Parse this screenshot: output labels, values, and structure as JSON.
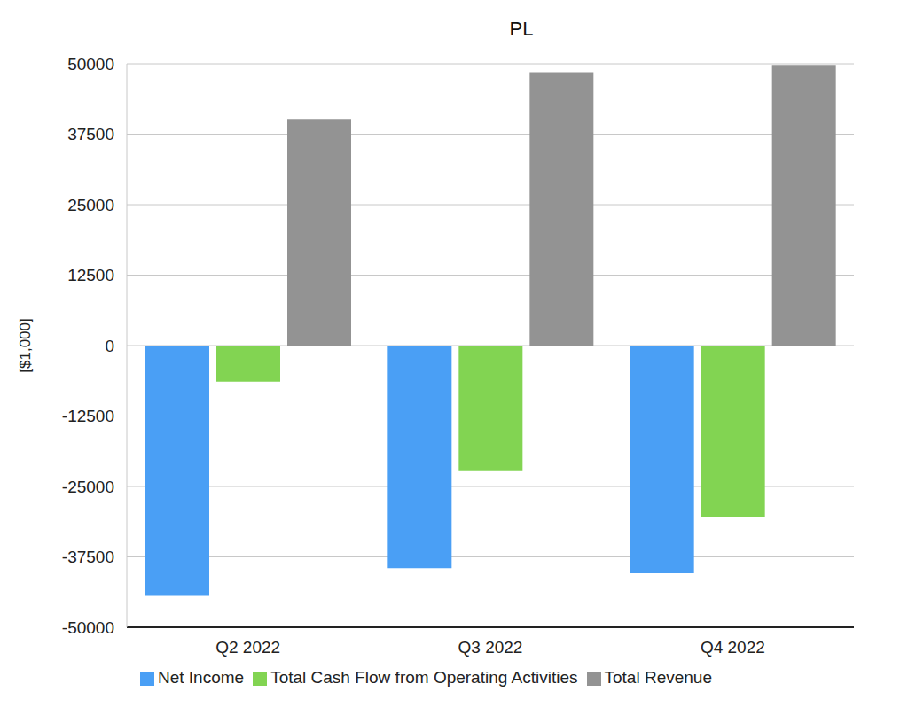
{
  "chart_data": {
    "type": "bar",
    "title": "PL",
    "y_label": "[$1,000]",
    "categories": [
      "Q2 2022",
      "Q3 2022",
      "Q4 2022"
    ],
    "series": [
      {
        "name": "Net Income",
        "color": "#4a9ff5",
        "values": [
          -44400,
          -39500,
          -40400
        ]
      },
      {
        "name": "Total Cash Flow from Operating Activities",
        "color": "#82d452",
        "values": [
          -6400,
          -22300,
          -30400
        ]
      },
      {
        "name": "Total Revenue",
        "color": "#939393",
        "values": [
          40200,
          48500,
          49800
        ]
      }
    ],
    "ylim": [
      -50000,
      50000
    ],
    "yticks": [
      -50000,
      -37500,
      -25000,
      -12500,
      0,
      12500,
      25000,
      37500,
      50000
    ],
    "grid": true,
    "legend": "bottom"
  }
}
